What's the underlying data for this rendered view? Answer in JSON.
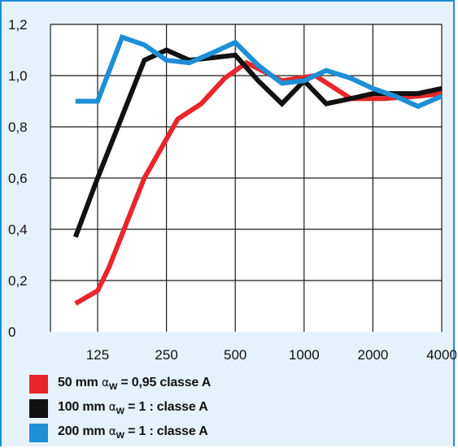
{
  "chart_data": {
    "type": "line",
    "title": "",
    "xlabel": "",
    "ylabel": "",
    "x_ticks": [
      "125",
      "250",
      "500",
      "1000",
      "2000",
      "4000"
    ],
    "y_ticks": [
      "0",
      "0,2",
      "0,4",
      "0,6",
      "0,8",
      "1,0",
      "1,2"
    ],
    "ylim": [
      0,
      1.2
    ],
    "grid": true,
    "series": [
      {
        "name": "50 mm αw = 0,95 classe A",
        "color": "#e8262b",
        "points": [
          [
            100,
            0.11
          ],
          [
            125,
            0.16
          ],
          [
            140,
            0.25
          ],
          [
            200,
            0.6
          ],
          [
            280,
            0.83
          ],
          [
            355,
            0.89
          ],
          [
            450,
            0.99
          ],
          [
            560,
            1.05
          ],
          [
            800,
            0.98
          ],
          [
            1120,
            1.0
          ],
          [
            1600,
            0.91
          ],
          [
            2240,
            0.91
          ],
          [
            3150,
            0.92
          ],
          [
            4000,
            0.93
          ]
        ]
      },
      {
        "name": "100 mm αw = 1 : classe A",
        "color": "#111111",
        "points": [
          [
            100,
            0.37
          ],
          [
            125,
            0.6
          ],
          [
            200,
            1.06
          ],
          [
            250,
            1.1
          ],
          [
            315,
            1.06
          ],
          [
            400,
            1.07
          ],
          [
            500,
            1.08
          ],
          [
            630,
            0.98
          ],
          [
            800,
            0.89
          ],
          [
            1000,
            0.98
          ],
          [
            1250,
            0.89
          ],
          [
            1600,
            0.91
          ],
          [
            2000,
            0.93
          ],
          [
            2500,
            0.93
          ],
          [
            3150,
            0.93
          ],
          [
            4000,
            0.95
          ]
        ]
      },
      {
        "name": "200 mm αw = 1 : classe A",
        "color": "#1e8fd6",
        "points": [
          [
            100,
            0.9
          ],
          [
            125,
            0.9
          ],
          [
            160,
            1.15
          ],
          [
            200,
            1.12
          ],
          [
            250,
            1.06
          ],
          [
            315,
            1.05
          ],
          [
            400,
            1.09
          ],
          [
            500,
            1.13
          ],
          [
            630,
            1.04
          ],
          [
            800,
            0.97
          ],
          [
            1000,
            0.98
          ],
          [
            1250,
            1.02
          ],
          [
            1600,
            0.99
          ],
          [
            2000,
            0.95
          ],
          [
            2500,
            0.92
          ],
          [
            3150,
            0.88
          ],
          [
            4000,
            0.92
          ]
        ]
      }
    ]
  },
  "legend": {
    "items": [
      {
        "color": "#e8262b",
        "prefix": "50 mm ",
        "alpha": "α",
        "sub": "W",
        "suffix": " = 0,95 classe A"
      },
      {
        "color": "#111111",
        "prefix": "100 mm ",
        "alpha": "α",
        "sub": "W",
        "suffix": " = 1 : classe A"
      },
      {
        "color": "#1e8fd6",
        "prefix": "200 mm ",
        "alpha": "α",
        "sub": "W",
        "suffix": " = 1 : classe A"
      }
    ]
  }
}
